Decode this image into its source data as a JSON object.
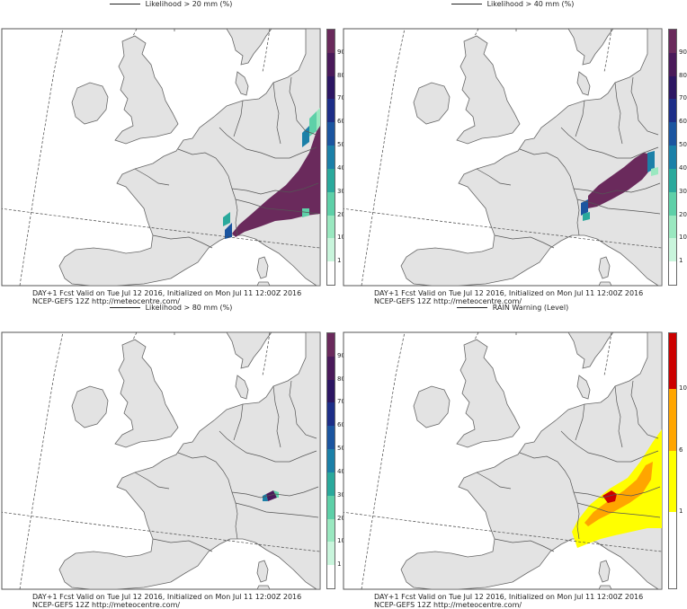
{
  "panels": [
    {
      "title": "Likelihood > 20 mm (%)",
      "footer_line1": "DAY+1 Fcst Valid on Tue Jul 12 2016, Initialized on Mon Jul 11 12:00Z 2016",
      "footer_line2": "NCEP-GEFS 12Z http://meteocentre.com/",
      "scale": "prob",
      "ticks": [
        "1",
        "10",
        "20",
        "30",
        "40",
        "50",
        "60",
        "70",
        "80",
        "90"
      ]
    },
    {
      "title": "Likelihood > 40 mm (%)",
      "footer_line1": "DAY+1 Fcst Valid on Tue Jul 12 2016, Initialized on Mon Jul 11 12:00Z 2016",
      "footer_line2": "NCEP-GEFS 12Z http://meteocentre.com/",
      "scale": "prob",
      "ticks": [
        "1",
        "10",
        "20",
        "30",
        "40",
        "50",
        "60",
        "70",
        "80",
        "90"
      ]
    },
    {
      "title": "Likelihood > 80 mm (%)",
      "footer_line1": "DAY+1 Fcst Valid on Tue Jul 12 2016, Initialized on Mon Jul 11 12:00Z 2016",
      "footer_line2": "NCEP-GEFS 12Z http://meteocentre.com/",
      "scale": "prob",
      "ticks": [
        "1",
        "10",
        "20",
        "30",
        "40",
        "50",
        "60",
        "70",
        "80",
        "90"
      ]
    },
    {
      "title": "RAIN Warning (Level)",
      "footer_line1": "DAY+1 Fcst Valid on Tue Jul 12 2016, Initialized on Mon Jul 11 12:00Z 2016",
      "footer_line2": "NCEP-GEFS 12Z http://meteocentre.com/",
      "scale": "warn",
      "ticks": [
        "1",
        "6",
        "10"
      ]
    }
  ],
  "colors": {
    "land": "#e3e3e3",
    "prob_scale": [
      "#ffffff",
      "#c9f5dc",
      "#9ae8c0",
      "#5ed0a8",
      "#2aa99c",
      "#1b80a8",
      "#1b55a0",
      "#1d2e88",
      "#2c1663",
      "#4a1a5a",
      "#6a2a5c"
    ],
    "warn_scale": [
      "#ffffff",
      "#ffff00",
      "#ffa500",
      "#ff7000",
      "#e02000",
      "#cc0000"
    ]
  }
}
